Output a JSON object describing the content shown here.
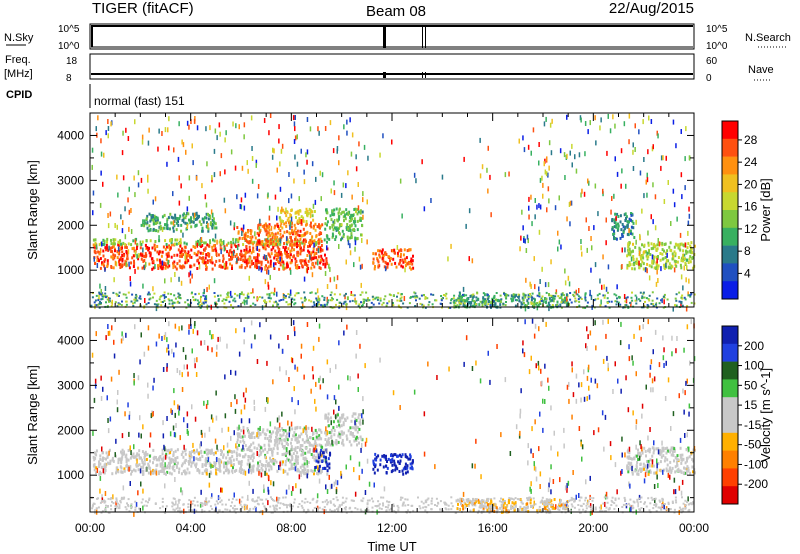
{
  "header": {
    "left_title": "TIGER (fitACF)",
    "center_title": "Beam 08",
    "right_title": "22/Aug/2015"
  },
  "nsky_panel": {
    "left_label": "N.Sky",
    "left_ticks": [
      "10^5",
      "10^0"
    ],
    "right_ticks": [
      "10^5",
      "10^0"
    ],
    "right_label": "N.Search"
  },
  "freq_panel": {
    "left_label_line1": "Freq.",
    "left_label_line2": "[MHz]",
    "left_ticks": [
      "18",
      "8"
    ],
    "right_ticks": [
      "60",
      "0"
    ],
    "right_label": "Nave",
    "cpid_label": "CPID",
    "cpid_text": "normal (fast) 151"
  },
  "chart_data": [
    {
      "type": "heatmap",
      "title": "",
      "xlabel": "",
      "ylabel": "Slant Range [km]",
      "x_ticks": [
        "00:00",
        "04:00",
        "08:00",
        "12:00",
        "16:00",
        "20:00",
        "00:00"
      ],
      "x_range_hours": [
        0,
        24
      ],
      "y_ticks": [
        "1000",
        "2000",
        "3000",
        "4000"
      ],
      "y_range_km": [
        180,
        4500
      ],
      "colorbar": {
        "label": "Power [dB]",
        "ticks": [
          "28",
          "24",
          "20",
          "16",
          "12",
          "8",
          "4"
        ],
        "range": [
          0,
          30
        ],
        "colors": [
          "#0a1ee6",
          "#2050c0",
          "#2a7a8a",
          "#38b060",
          "#7ec840",
          "#c8d830",
          "#f0c020",
          "#ff9010",
          "#ff5010",
          "#ff0000"
        ]
      },
      "regions": [
        {
          "t0": 0.1,
          "t1": 9.4,
          "r0": 1050,
          "r1": 1600,
          "value": 26
        },
        {
          "t0": 0.1,
          "t1": 9.4,
          "r0": 1600,
          "r1": 1720,
          "value": 14
        },
        {
          "t0": 5.8,
          "t1": 9.2,
          "r0": 1600,
          "r1": 2100,
          "value": 24
        },
        {
          "t0": 7.5,
          "t1": 8.9,
          "r0": 2100,
          "r1": 2400,
          "value": 18
        },
        {
          "t0": 2.0,
          "t1": 5.0,
          "r0": 1900,
          "r1": 2300,
          "value": 10
        },
        {
          "t0": 9.3,
          "t1": 10.8,
          "r0": 1700,
          "r1": 2400,
          "value": 12
        },
        {
          "t0": 11.2,
          "t1": 12.8,
          "r0": 1050,
          "r1": 1500,
          "value": 25
        },
        {
          "t0": 21.3,
          "t1": 24.0,
          "r0": 1050,
          "r1": 1650,
          "value": 15
        },
        {
          "t0": 20.7,
          "t1": 21.6,
          "r0": 1700,
          "r1": 2300,
          "value": 8
        },
        {
          "t0": 14.5,
          "t1": 19.0,
          "r0": 200,
          "r1": 500,
          "value": 10
        }
      ]
    },
    {
      "type": "heatmap",
      "title": "",
      "xlabel": "Time UT",
      "ylabel": "Slant Range [km]",
      "x_ticks": [
        "00:00",
        "04:00",
        "08:00",
        "12:00",
        "16:00",
        "20:00",
        "00:00"
      ],
      "x_range_hours": [
        0,
        24
      ],
      "y_ticks": [
        "1000",
        "2000",
        "3000",
        "4000"
      ],
      "y_range_km": [
        180,
        4500
      ],
      "colorbar": {
        "label": "Velocity [m s^-1]",
        "ticks": [
          "200",
          "100",
          "50",
          "15",
          "-15",
          "-50",
          "-100",
          "-200"
        ],
        "range": [
          -250,
          250
        ],
        "colors": [
          "#e00000",
          "#ff4000",
          "#ff8000",
          "#ffb000",
          "#c8c8c8",
          "#c8c8c8",
          "#40c040",
          "#206020",
          "#2040e0",
          "#1020b0"
        ]
      },
      "regions": [
        {
          "t0": 0.1,
          "t1": 9.4,
          "r0": 1050,
          "r1": 1600,
          "value": 0
        },
        {
          "t0": 5.8,
          "t1": 9.2,
          "r0": 1600,
          "r1": 2100,
          "value": 5
        },
        {
          "t0": 9.3,
          "t1": 10.8,
          "r0": 1700,
          "r1": 2400,
          "value": 8
        },
        {
          "t0": 11.2,
          "t1": 12.8,
          "r0": 1050,
          "r1": 1500,
          "value": 220
        },
        {
          "t0": 8.9,
          "t1": 9.5,
          "r0": 1100,
          "r1": 1600,
          "value": 210
        },
        {
          "t0": 21.3,
          "t1": 24.0,
          "r0": 1050,
          "r1": 1650,
          "value": 0
        },
        {
          "t0": 14.5,
          "t1": 19.0,
          "r0": 200,
          "r1": 500,
          "value": -60
        }
      ]
    }
  ]
}
